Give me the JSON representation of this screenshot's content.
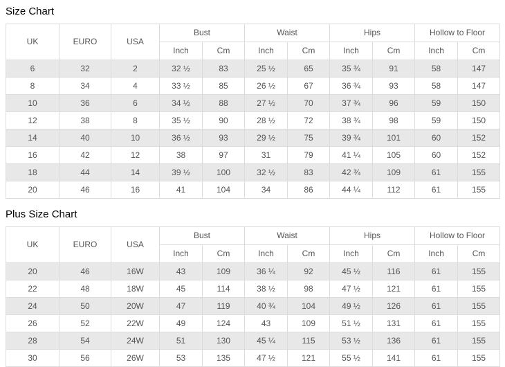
{
  "colors": {
    "stripe": "#e8e8e8",
    "border": "#dcdcdc",
    "text": "#555555",
    "title": "#000000",
    "background": "#ffffff"
  },
  "sub_headers": [
    "Inch",
    "Cm"
  ],
  "size_chart": {
    "title": "Size Chart",
    "simple_columns": [
      "UK",
      "EURO",
      "USA"
    ],
    "group_columns": [
      "Bust",
      "Waist",
      "Hips",
      "Hollow to Floor"
    ],
    "rows": [
      [
        "6",
        "32",
        "2",
        "32 ½",
        "83",
        "25 ½",
        "65",
        "35 ¾",
        "91",
        "58",
        "147"
      ],
      [
        "8",
        "34",
        "4",
        "33 ½",
        "85",
        "26 ½",
        "67",
        "36 ¾",
        "93",
        "58",
        "147"
      ],
      [
        "10",
        "36",
        "6",
        "34 ½",
        "88",
        "27 ½",
        "70",
        "37 ¾",
        "96",
        "59",
        "150"
      ],
      [
        "12",
        "38",
        "8",
        "35 ½",
        "90",
        "28 ½",
        "72",
        "38 ¾",
        "98",
        "59",
        "150"
      ],
      [
        "14",
        "40",
        "10",
        "36 ½",
        "93",
        "29 ½",
        "75",
        "39 ¾",
        "101",
        "60",
        "152"
      ],
      [
        "16",
        "42",
        "12",
        "38",
        "97",
        "31",
        "79",
        "41 ¼",
        "105",
        "60",
        "152"
      ],
      [
        "18",
        "44",
        "14",
        "39 ½",
        "100",
        "32 ½",
        "83",
        "42 ¾",
        "109",
        "61",
        "155"
      ],
      [
        "20",
        "46",
        "16",
        "41",
        "104",
        "34",
        "86",
        "44 ¼",
        "112",
        "61",
        "155"
      ]
    ]
  },
  "plus_size_chart": {
    "title": "Plus Size Chart",
    "simple_columns": [
      "UK",
      "EURO",
      "USA"
    ],
    "group_columns": [
      "Bust",
      "Waist",
      "Hips",
      "Hollow to Floor"
    ],
    "rows": [
      [
        "20",
        "46",
        "16W",
        "43",
        "109",
        "36 ¼",
        "92",
        "45 ½",
        "116",
        "61",
        "155"
      ],
      [
        "22",
        "48",
        "18W",
        "45",
        "114",
        "38 ½",
        "98",
        "47 ½",
        "121",
        "61",
        "155"
      ],
      [
        "24",
        "50",
        "20W",
        "47",
        "119",
        "40 ¾",
        "104",
        "49 ½",
        "126",
        "61",
        "155"
      ],
      [
        "26",
        "52",
        "22W",
        "49",
        "124",
        "43",
        "109",
        "51 ½",
        "131",
        "61",
        "155"
      ],
      [
        "28",
        "54",
        "24W",
        "51",
        "130",
        "45 ¼",
        "115",
        "53 ½",
        "136",
        "61",
        "155"
      ],
      [
        "30",
        "56",
        "26W",
        "53",
        "135",
        "47 ½",
        "121",
        "55 ½",
        "141",
        "61",
        "155"
      ]
    ]
  }
}
